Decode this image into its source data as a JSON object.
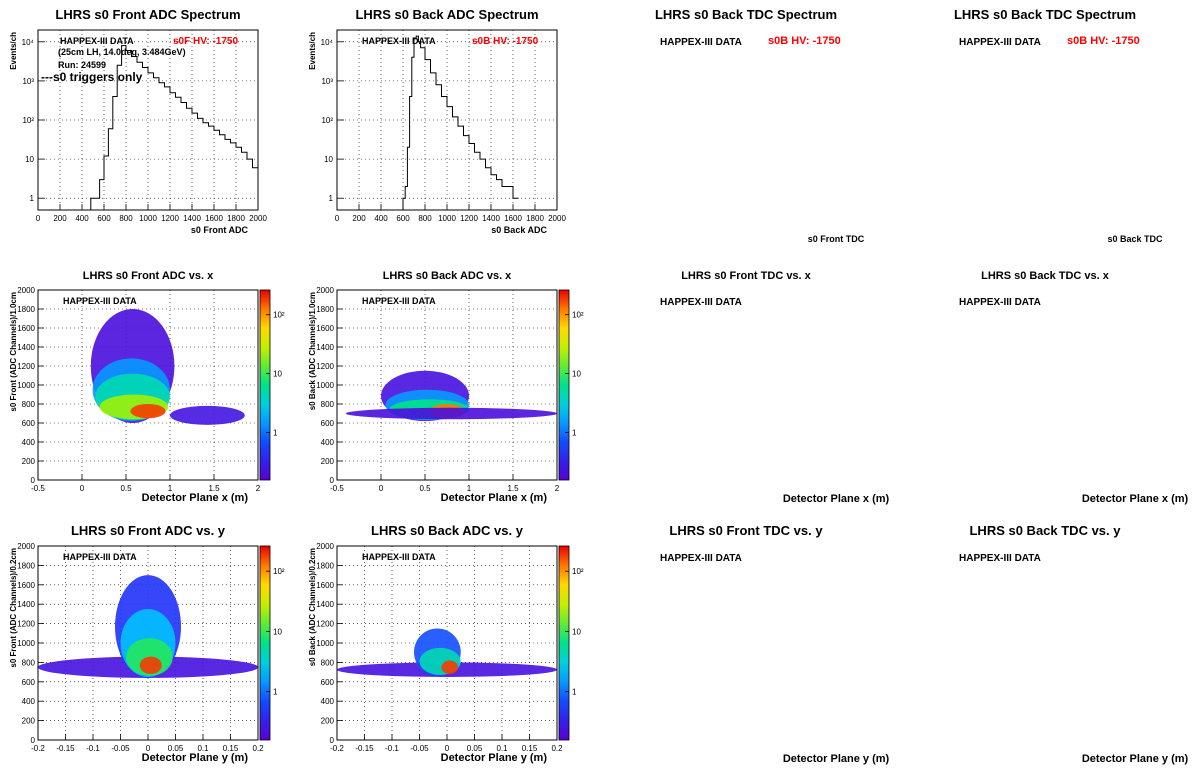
{
  "chart_data": [
    {
      "id": "p1",
      "type": "line",
      "title": "LHRS s0 Front ADC Spectrum",
      "xlabel": "s0 Front ADC",
      "ylabel": "Events/ch",
      "xlim": [
        0,
        2000
      ],
      "ylim": [
        0.5,
        20000
      ],
      "log_y": true,
      "grid": true,
      "xticks": [
        "0",
        "200",
        "400",
        "600",
        "800",
        "1000",
        "1200",
        "1400",
        "1600",
        "1800",
        "2000"
      ],
      "yticks": [
        "1",
        "10",
        "10²",
        "10³",
        "10⁴"
      ],
      "annotations": [
        "HAPPEX-III DATA",
        "(25cm LH,  14.0deg, 3.484GeV)",
        "Run: 24599",
        "---s0 triggers only"
      ],
      "hv_label": "s0F HV: -1750",
      "x": [
        480,
        520,
        560,
        600,
        640,
        680,
        720,
        760,
        800,
        850,
        900,
        950,
        1000,
        1050,
        1100,
        1150,
        1200,
        1250,
        1300,
        1350,
        1400,
        1450,
        1500,
        1550,
        1600,
        1650,
        1700,
        1750,
        1800,
        1850,
        1900,
        1950,
        2000
      ],
      "values": [
        1,
        1,
        3,
        12,
        60,
        400,
        2500,
        8000,
        6000,
        4200,
        3000,
        2200,
        1600,
        1200,
        900,
        700,
        500,
        380,
        280,
        200,
        150,
        110,
        85,
        70,
        55,
        42,
        32,
        26,
        20,
        15,
        10,
        6,
        4
      ]
    },
    {
      "id": "p2",
      "type": "line",
      "title": "LHRS s0 Back  ADC Spectrum",
      "xlabel": "s0 Back ADC",
      "ylabel": "Events/ch",
      "xlim": [
        0,
        2000
      ],
      "ylim": [
        0.5,
        20000
      ],
      "log_y": true,
      "grid": true,
      "xticks": [
        "0",
        "200",
        "400",
        "600",
        "800",
        "1000",
        "1200",
        "1400",
        "1600",
        "1800",
        "2000"
      ],
      "yticks": [
        "1",
        "10",
        "10²",
        "10³",
        "10⁴"
      ],
      "annotations": [
        "HAPPEX-III DATA"
      ],
      "hv_label": "s0B HV: -1750",
      "x": [
        600,
        620,
        640,
        660,
        680,
        700,
        720,
        740,
        760,
        800,
        850,
        900,
        950,
        1000,
        1050,
        1100,
        1150,
        1200,
        1250,
        1300,
        1350,
        1400,
        1450,
        1500,
        1550,
        1600,
        1650
      ],
      "values": [
        1,
        2,
        20,
        400,
        4000,
        12000,
        14000,
        10000,
        7000,
        3500,
        1600,
        800,
        400,
        220,
        120,
        70,
        40,
        25,
        15,
        10,
        6,
        4,
        3,
        2,
        2,
        1,
        1
      ]
    },
    {
      "id": "p3",
      "type": "line",
      "title": "LHRS s0 Back  TDC Spectrum",
      "xlabel": "s0 Front TDC",
      "ylabel": "",
      "annotations": [
        "HAPPEX-III DATA"
      ],
      "hv_label": "s0B HV: -1750",
      "x": [],
      "values": []
    },
    {
      "id": "p4",
      "type": "line",
      "title": "LHRS s0 Back  TDC Spectrum",
      "xlabel": "s0 Back TDC",
      "ylabel": "",
      "annotations": [
        "HAPPEX-III DATA"
      ],
      "hv_label": "s0B HV: -1750",
      "x": [],
      "values": []
    },
    {
      "id": "p5",
      "type": "heatmap",
      "title": "LHRS s0 Front ADC vs. x",
      "xlabel": "Detector Plane x (m)",
      "ylabel": "s0 Front (ADC Channels)/1.0cm",
      "xlim": [
        -0.5,
        2
      ],
      "ylim": [
        0,
        2000
      ],
      "grid": true,
      "xticks": [
        "-0.5",
        "0",
        "0.5",
        "1",
        "1.5",
        "2"
      ],
      "yticks": [
        "0",
        "200",
        "400",
        "600",
        "800",
        "1000",
        "1200",
        "1400",
        "1600",
        "1800",
        "2000"
      ],
      "colorbar_ticks": [
        "1",
        "10",
        "10²"
      ],
      "annotations": [
        "HAPPEX-III DATA"
      ],
      "blobs": [
        {
          "x0": 0.1,
          "x1": 1.05,
          "y0": 600,
          "y1": 1800,
          "level": 0.04
        },
        {
          "x0": 0.12,
          "x1": 1.0,
          "y0": 620,
          "y1": 1280,
          "level": 0.3
        },
        {
          "x0": 0.15,
          "x1": 1.0,
          "y0": 630,
          "y1": 1120,
          "level": 0.45
        },
        {
          "x0": 0.2,
          "x1": 0.98,
          "y0": 640,
          "y1": 900,
          "level": 0.65
        },
        {
          "x0": 0.55,
          "x1": 0.95,
          "y0": 650,
          "y1": 800,
          "level": 0.95
        },
        {
          "x0": 1.0,
          "x1": 1.85,
          "y0": 580,
          "y1": 780,
          "level": 0.06
        }
      ]
    },
    {
      "id": "p6",
      "type": "heatmap",
      "title": "LHRS s0 Back  ADC vs. x",
      "xlabel": "Detector Plane x (m)",
      "ylabel": "s0 Back (ADC Channels)/1.0cm",
      "xlim": [
        -0.5,
        2
      ],
      "ylim": [
        0,
        2000
      ],
      "grid": true,
      "xticks": [
        "-0.5",
        "0",
        "0.5",
        "1",
        "1.5",
        "2"
      ],
      "yticks": [
        "0",
        "200",
        "400",
        "600",
        "800",
        "1000",
        "1200",
        "1400",
        "1600",
        "1800",
        "2000"
      ],
      "colorbar_ticks": [
        "1",
        "10",
        "10²"
      ],
      "annotations": [
        "HAPPEX-III DATA"
      ],
      "blobs": [
        {
          "x0": 0.0,
          "x1": 1.0,
          "y0": 620,
          "y1": 1150,
          "level": 0.05
        },
        {
          "x0": 0.05,
          "x1": 1.0,
          "y0": 630,
          "y1": 950,
          "level": 0.3
        },
        {
          "x0": 0.1,
          "x1": 1.0,
          "y0": 640,
          "y1": 850,
          "level": 0.5
        },
        {
          "x0": 0.55,
          "x1": 0.95,
          "y0": 650,
          "y1": 800,
          "level": 0.9
        },
        {
          "x0": -0.4,
          "x1": 2.0,
          "y0": 640,
          "y1": 760,
          "level": 0.04
        }
      ]
    },
    {
      "id": "p7",
      "type": "heatmap",
      "title": "LHRS s0 Front TDC vs. x",
      "xlabel": "Detector Plane x (m)",
      "ylabel": "",
      "annotations": [
        "HAPPEX-III DATA"
      ],
      "blobs": []
    },
    {
      "id": "p8",
      "type": "heatmap",
      "title": "LHRS s0 Back  TDC vs. x",
      "xlabel": "Detector Plane x (m)",
      "ylabel": "",
      "annotations": [
        "HAPPEX-III DATA"
      ],
      "blobs": []
    },
    {
      "id": "p9",
      "type": "heatmap",
      "title": "LHRS s0 Front ADC vs. y",
      "xlabel": "Detector Plane y (m)",
      "ylabel": "s0 Front (ADC Channels)/0.2cm",
      "xlim": [
        -0.2,
        0.2
      ],
      "ylim": [
        0,
        2000
      ],
      "grid": true,
      "xticks": [
        "-0.2",
        "-0.15",
        "-0.1",
        "-0.05",
        "0",
        "0.05",
        "0.1",
        "0.15",
        "0.2"
      ],
      "yticks": [
        "0",
        "200",
        "400",
        "600",
        "800",
        "1000",
        "1200",
        "1400",
        "1600",
        "1800",
        "2000"
      ],
      "colorbar_ticks": [
        "1",
        "10",
        "10²"
      ],
      "annotations": [
        "HAPPEX-III DATA"
      ],
      "blobs": [
        {
          "x0": -0.2,
          "x1": 0.2,
          "y0": 640,
          "y1": 860,
          "level": 0.05
        },
        {
          "x0": -0.06,
          "x1": 0.06,
          "y0": 640,
          "y1": 1700,
          "level": 0.15
        },
        {
          "x0": -0.05,
          "x1": 0.05,
          "y0": 650,
          "y1": 1350,
          "level": 0.35
        },
        {
          "x0": -0.04,
          "x1": 0.045,
          "y0": 660,
          "y1": 1050,
          "level": 0.55
        },
        {
          "x0": -0.015,
          "x1": 0.025,
          "y0": 680,
          "y1": 860,
          "level": 0.95
        }
      ]
    },
    {
      "id": "p10",
      "type": "heatmap",
      "title": "LHRS s0 Back  ADC vs. y",
      "xlabel": "Detector Plane y (m)",
      "ylabel": "s0 Back (ADC Channels)/0.2cm",
      "xlim": [
        -0.2,
        0.2
      ],
      "ylim": [
        0,
        2000
      ],
      "grid": true,
      "xticks": [
        "-0.2",
        "-0.15",
        "-0.1",
        "-0.05",
        "0",
        "0.05",
        "0.1",
        "0.15",
        "0.2"
      ],
      "yticks": [
        "0",
        "200",
        "400",
        "600",
        "800",
        "1000",
        "1200",
        "1400",
        "1600",
        "1800",
        "2000"
      ],
      "colorbar_ticks": [
        "1",
        "10",
        "10²"
      ],
      "annotations": [
        "HAPPEX-III DATA"
      ],
      "blobs": [
        {
          "x0": -0.2,
          "x1": 0.2,
          "y0": 650,
          "y1": 800,
          "level": 0.05
        },
        {
          "x0": -0.06,
          "x1": 0.025,
          "y0": 660,
          "y1": 1150,
          "level": 0.2
        },
        {
          "x0": -0.05,
          "x1": 0.025,
          "y0": 670,
          "y1": 950,
          "level": 0.45
        },
        {
          "x0": -0.01,
          "x1": 0.02,
          "y0": 680,
          "y1": 820,
          "level": 0.95
        }
      ]
    },
    {
      "id": "p11",
      "type": "heatmap",
      "title": "LHRS s0 Front TDC vs. y",
      "xlabel": "Detector Plane y (m)",
      "ylabel": "",
      "annotations": [
        "HAPPEX-III DATA"
      ],
      "blobs": []
    },
    {
      "id": "p12",
      "type": "heatmap",
      "title": "LHRS s0 Back  TDC vs. y",
      "xlabel": "Detector Plane y (m)",
      "ylabel": "",
      "annotations": [
        "HAPPEX-III DATA"
      ],
      "blobs": []
    }
  ]
}
